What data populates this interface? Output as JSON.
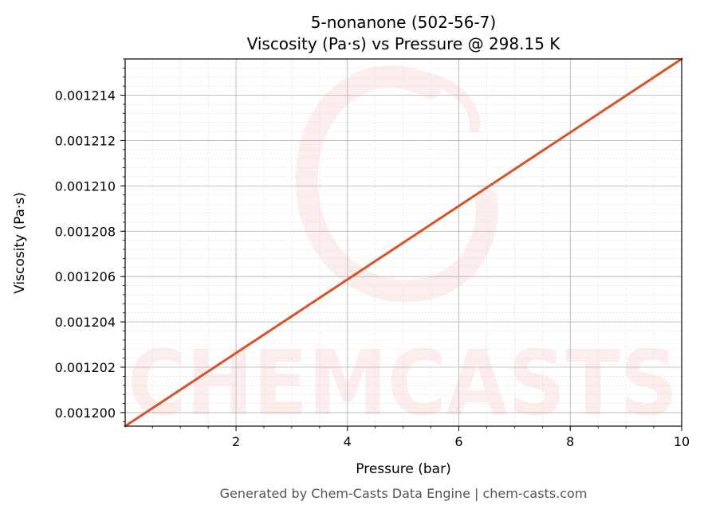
{
  "chart_data": {
    "type": "line",
    "title": "5-nonanone (502-56-7)",
    "subtitle": "Viscosity (Pa·s) vs Pressure @ 298.15 K",
    "xlabel": "Pressure (bar)",
    "ylabel": "Viscosity (Pa·s)",
    "xlim": [
      0.01,
      10
    ],
    "ylim": [
      0.0011994,
      0.0012156
    ],
    "x_ticks": [
      2,
      4,
      6,
      8,
      10
    ],
    "x_tick_labels": [
      "2",
      "4",
      "6",
      "8",
      "10"
    ],
    "y_ticks": [
      0.0012,
      0.001202,
      0.001204,
      0.001206,
      0.001208,
      0.00121,
      0.001212,
      0.001214
    ],
    "y_tick_labels": [
      "0.001200",
      "0.001202",
      "0.001204",
      "0.001206",
      "0.001208",
      "0.001210",
      "0.001212",
      "0.001214"
    ],
    "grid": true,
    "series": [
      {
        "color": "#d9532a",
        "x": [
          0.01,
          10
        ],
        "y": [
          0.0011994,
          0.0012156
        ]
      }
    ],
    "watermark": "CHEMCASTS",
    "footer": "Generated by Chem-Casts Data Engine | chem-casts.com"
  }
}
